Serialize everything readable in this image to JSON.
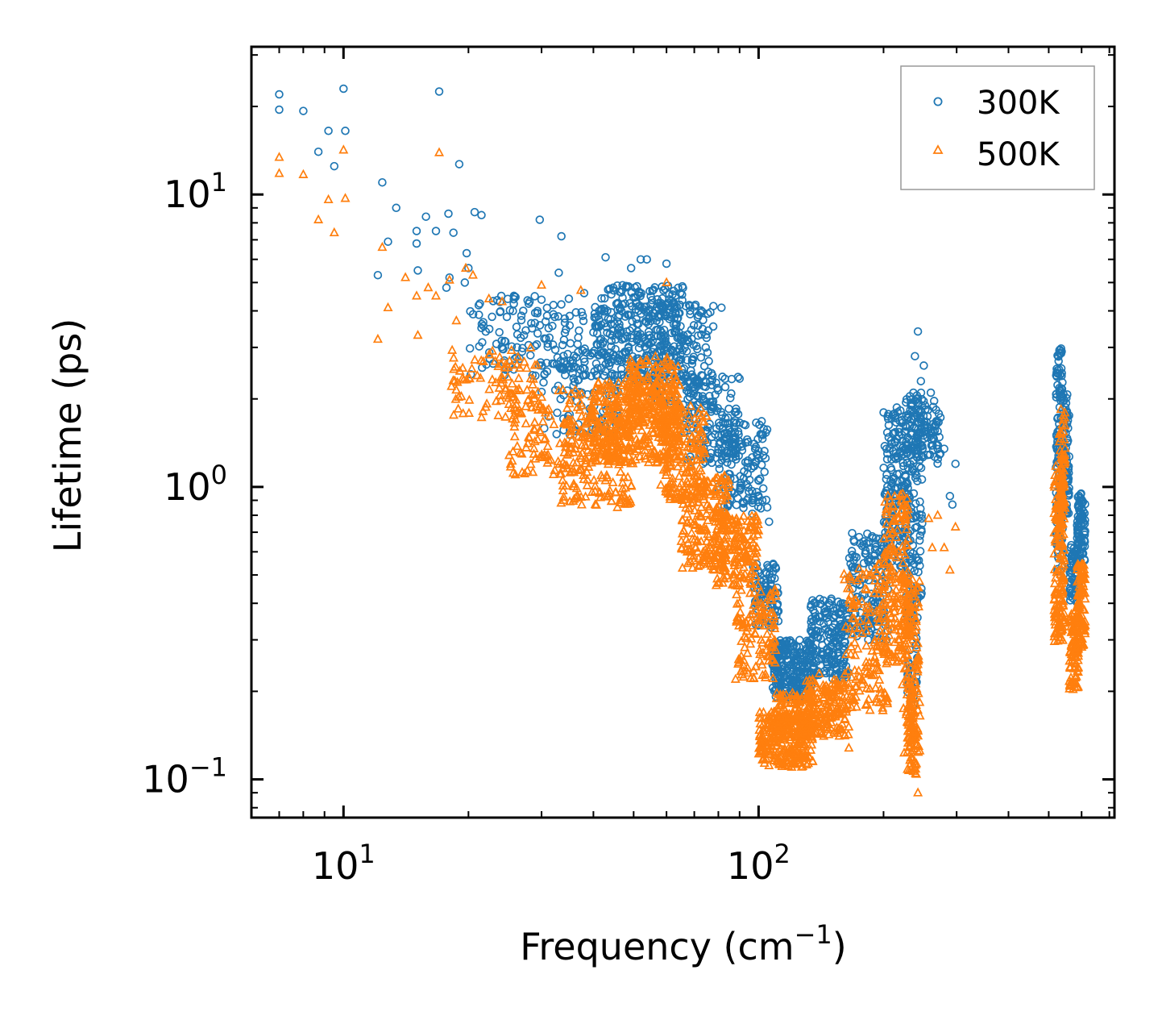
{
  "chart_data": {
    "type": "scatter",
    "xscale": "log",
    "yscale": "log",
    "xlabel": "Frequency (cm",
    "xlabel_sup": "−1",
    "xlabel_close": ")",
    "ylabel": "Lifetime (ps)",
    "xlim": [
      6.0,
      720
    ],
    "ylim": [
      0.074,
      32
    ],
    "x_ticks": [
      {
        "value": 10,
        "base": "10",
        "exp": "1"
      },
      {
        "value": 100,
        "base": "10",
        "exp": "2"
      }
    ],
    "y_ticks": [
      {
        "value": 0.1,
        "base": "10",
        "exp": "−1"
      },
      {
        "value": 1,
        "base": "10",
        "exp": "0"
      },
      {
        "value": 10,
        "base": "10",
        "exp": "1"
      }
    ],
    "legend": {
      "position": "top-right",
      "entries": [
        "300K",
        "500K"
      ]
    },
    "colors": {
      "s300": "#1f77b4",
      "s500": "#ff7f0e",
      "axis": "#000000",
      "legend_border": "#999999"
    },
    "series": [
      {
        "name": "300K",
        "marker": "circle",
        "explicit_points": [
          [
            7.0,
            22
          ],
          [
            7.0,
            19.5
          ],
          [
            8.0,
            19.3
          ],
          [
            8.7,
            14
          ],
          [
            9.2,
            16.5
          ],
          [
            9.5,
            12.5
          ],
          [
            10.0,
            23
          ],
          [
            10.1,
            16.5
          ],
          [
            12.4,
            11
          ],
          [
            13.4,
            9
          ],
          [
            15.0,
            7.5
          ],
          [
            15.8,
            8.4
          ],
          [
            16.7,
            7.5
          ],
          [
            17.0,
            22.5
          ],
          [
            17.9,
            8.6
          ],
          [
            18.4,
            7.4
          ],
          [
            19.0,
            12.7
          ],
          [
            20.7,
            8.7
          ],
          [
            21.5,
            8.5
          ],
          [
            29.7,
            8.2
          ],
          [
            33.5,
            7.2
          ],
          [
            42.8,
            6.1
          ],
          [
            49.3,
            5.6
          ],
          [
            52.0,
            6.0
          ],
          [
            53.8,
            6.0
          ],
          [
            60.0,
            5.8
          ],
          [
            12.1,
            5.3
          ],
          [
            12.8,
            6.9
          ],
          [
            15.0,
            6.8
          ],
          [
            15.1,
            5.5
          ],
          [
            17.7,
            4.8
          ],
          [
            18.0,
            5.2
          ],
          [
            19.6,
            5.0
          ],
          [
            20.0,
            5.6
          ],
          [
            19.8,
            6.3
          ],
          [
            24.0,
            4.5
          ],
          [
            27.1,
            4.0
          ],
          [
            33.0,
            5.4
          ],
          [
            38.0,
            4.6
          ],
          [
            81.4,
            4.1
          ],
          [
            106,
            0.76
          ],
          [
            242,
            3.4
          ],
          [
            238,
            2.8
          ],
          [
            260,
            2.1
          ],
          [
            270,
            1.55
          ],
          [
            280,
            1.35
          ],
          [
            298,
            1.2
          ],
          [
            293,
            0.87
          ],
          [
            289,
            0.93
          ],
          [
            236,
            2.1
          ],
          [
            233,
            1.9
          ],
          [
            246,
            2.3
          ],
          [
            255,
            1.6
          ],
          [
            250,
            2.6
          ],
          [
            228,
            1.3
          ],
          [
            222,
            1.0
          ]
        ],
        "clusters": [
          {
            "x": [
              20,
              38
            ],
            "y": [
              2.4,
              4.6
            ],
            "n": 140
          },
          {
            "x": [
              30,
              46
            ],
            "y": [
              1.5,
              3.2
            ],
            "n": 110
          },
          {
            "x": [
              40,
              66
            ],
            "y": [
              2.3,
              4.9
            ],
            "n": 340
          },
          {
            "x": [
              55,
              78
            ],
            "y": [
              1.9,
              4.2
            ],
            "n": 160
          },
          {
            "x": [
              66,
              90
            ],
            "y": [
              1.2,
              2.4
            ],
            "n": 150
          },
          {
            "x": [
              80,
              105
            ],
            "y": [
              0.8,
              1.7
            ],
            "n": 140
          },
          {
            "x": [
              97,
              112
            ],
            "y": [
              0.33,
              0.55
            ],
            "n": 90
          },
          {
            "x": [
              108,
              135
            ],
            "y": [
              0.19,
              0.3
            ],
            "n": 260
          },
          {
            "x": [
              133,
              165
            ],
            "y": [
              0.22,
              0.42
            ],
            "n": 190
          },
          {
            "x": [
              165,
              205
            ],
            "y": [
              0.3,
              0.7
            ],
            "n": 150
          },
          {
            "x": [
              200,
              230
            ],
            "y": [
              0.5,
              1.9
            ],
            "n": 170
          },
          {
            "x": [
              225,
              248
            ],
            "y": [
              0.4,
              2.1
            ],
            "n": 140
          },
          {
            "x": [
              228,
              242
            ],
            "y": [
              0.18,
              0.45
            ],
            "n": 60
          },
          {
            "x": [
              236,
              275
            ],
            "y": [
              1.2,
              2.0
            ],
            "n": 80
          },
          {
            "x": [
              520,
              540
            ],
            "y": [
              0.5,
              3.0
            ],
            "n": 130
          },
          {
            "x": [
              540,
              560
            ],
            "y": [
              0.8,
              2.1
            ],
            "n": 90
          },
          {
            "x": [
              560,
              590
            ],
            "y": [
              0.4,
              0.65
            ],
            "n": 60
          },
          {
            "x": [
              585,
              612
            ],
            "y": [
              0.55,
              0.95
            ],
            "n": 80
          }
        ]
      },
      {
        "name": "500K",
        "marker": "triangle",
        "explicit_points": [
          [
            7.0,
            13.4
          ],
          [
            7.0,
            11.8
          ],
          [
            8.0,
            11.7
          ],
          [
            8.7,
            8.2
          ],
          [
            9.2,
            9.6
          ],
          [
            9.5,
            7.4
          ],
          [
            10.0,
            14.2
          ],
          [
            10.1,
            9.7
          ],
          [
            12.1,
            3.2
          ],
          [
            12.4,
            6.6
          ],
          [
            12.8,
            4.1
          ],
          [
            14.1,
            5.2
          ],
          [
            15.0,
            4.5
          ],
          [
            15.1,
            3.3
          ],
          [
            16.0,
            4.8
          ],
          [
            16.7,
            4.5
          ],
          [
            17.0,
            13.9
          ],
          [
            18.0,
            5.1
          ],
          [
            18.7,
            3.7
          ],
          [
            19.7,
            5.6
          ],
          [
            20.5,
            5.3
          ],
          [
            22.4,
            4.4
          ],
          [
            24.1,
            4.3
          ],
          [
            30.0,
            4.9
          ],
          [
            37.3,
            4.7
          ],
          [
            60.0,
            5.0
          ],
          [
            95.0,
            0.73
          ],
          [
            113,
            0.115
          ],
          [
            160,
            0.17
          ],
          [
            165,
            0.128
          ],
          [
            140,
            0.23
          ],
          [
            242,
            0.09
          ],
          [
            298,
            0.73
          ],
          [
            289,
            0.52
          ],
          [
            280,
            0.62
          ],
          [
            270,
            0.8
          ],
          [
            262,
            0.62
          ],
          [
            257,
            0.78
          ],
          [
            88,
            0.22
          ]
        ],
        "clusters": [
          {
            "x": [
              18,
              30
            ],
            "y": [
              1.7,
              3.0
            ],
            "n": 90
          },
          {
            "x": [
              25,
              40
            ],
            "y": [
              1.1,
              2.2
            ],
            "n": 140
          },
          {
            "x": [
              33,
              50
            ],
            "y": [
              0.85,
              1.8
            ],
            "n": 170
          },
          {
            "x": [
              40,
              65
            ],
            "y": [
              1.2,
              2.3
            ],
            "n": 380
          },
          {
            "x": [
              48,
              64
            ],
            "y": [
              1.6,
              2.8
            ],
            "n": 150
          },
          {
            "x": [
              58,
              75
            ],
            "y": [
              0.9,
              1.9
            ],
            "n": 170
          },
          {
            "x": [
              65,
              85
            ],
            "y": [
              0.52,
              1.1
            ],
            "n": 200
          },
          {
            "x": [
              78,
              100
            ],
            "y": [
              0.45,
              0.8
            ],
            "n": 180
          },
          {
            "x": [
              88,
              110
            ],
            "y": [
              0.22,
              0.45
            ],
            "n": 120
          },
          {
            "x": [
              100,
              135
            ],
            "y": [
              0.11,
              0.17
            ],
            "n": 280
          },
          {
            "x": [
              110,
              135
            ],
            "y": [
              0.14,
              0.2
            ],
            "n": 100
          },
          {
            "x": [
              130,
              165
            ],
            "y": [
              0.14,
              0.22
            ],
            "n": 180
          },
          {
            "x": [
              160,
              205
            ],
            "y": [
              0.17,
              0.55
            ],
            "n": 160
          },
          {
            "x": [
              200,
              230
            ],
            "y": [
              0.25,
              0.95
            ],
            "n": 180
          },
          {
            "x": [
              222,
              245
            ],
            "y": [
              0.12,
              0.5
            ],
            "n": 140
          },
          {
            "x": [
              228,
              240
            ],
            "y": [
              0.1,
              0.22
            ],
            "n": 60
          },
          {
            "x": [
              515,
              545
            ],
            "y": [
              0.29,
              1.2
            ],
            "n": 170
          },
          {
            "x": [
              530,
              548
            ],
            "y": [
              0.7,
              1.85
            ],
            "n": 60
          },
          {
            "x": [
              560,
              590
            ],
            "y": [
              0.2,
              0.38
            ],
            "n": 90
          },
          {
            "x": [
              585,
              612
            ],
            "y": [
              0.28,
              0.55
            ],
            "n": 100
          }
        ]
      }
    ]
  }
}
